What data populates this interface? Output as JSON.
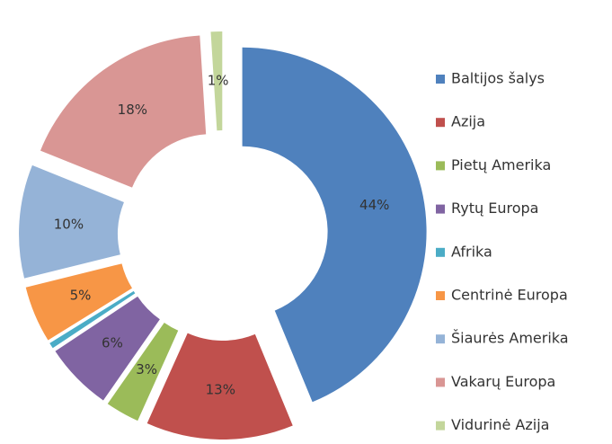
{
  "chart_data": {
    "type": "donut",
    "categories": [
      "Baltijos šalys",
      "Azija",
      "Pietų Amerika",
      "Rytų Europa",
      "Afrika",
      "Centrinė Europa",
      "Šiaurės Amerika",
      "Vakarų Europa",
      "Vidurinė Azija"
    ],
    "values": [
      44,
      13,
      3,
      6,
      0.5,
      5,
      10,
      18,
      1
    ],
    "value_labels": [
      "44%",
      "13%",
      "3%",
      "6%",
      null,
      "5%",
      "10%",
      "18%",
      "1%"
    ],
    "colors": [
      "#4f81bd",
      "#c0504d",
      "#9bbb59",
      "#8064a2",
      "#4bacc6",
      "#f79646",
      "#95b3d7",
      "#d99694",
      "#c3d69b"
    ],
    "legend": "right"
  }
}
